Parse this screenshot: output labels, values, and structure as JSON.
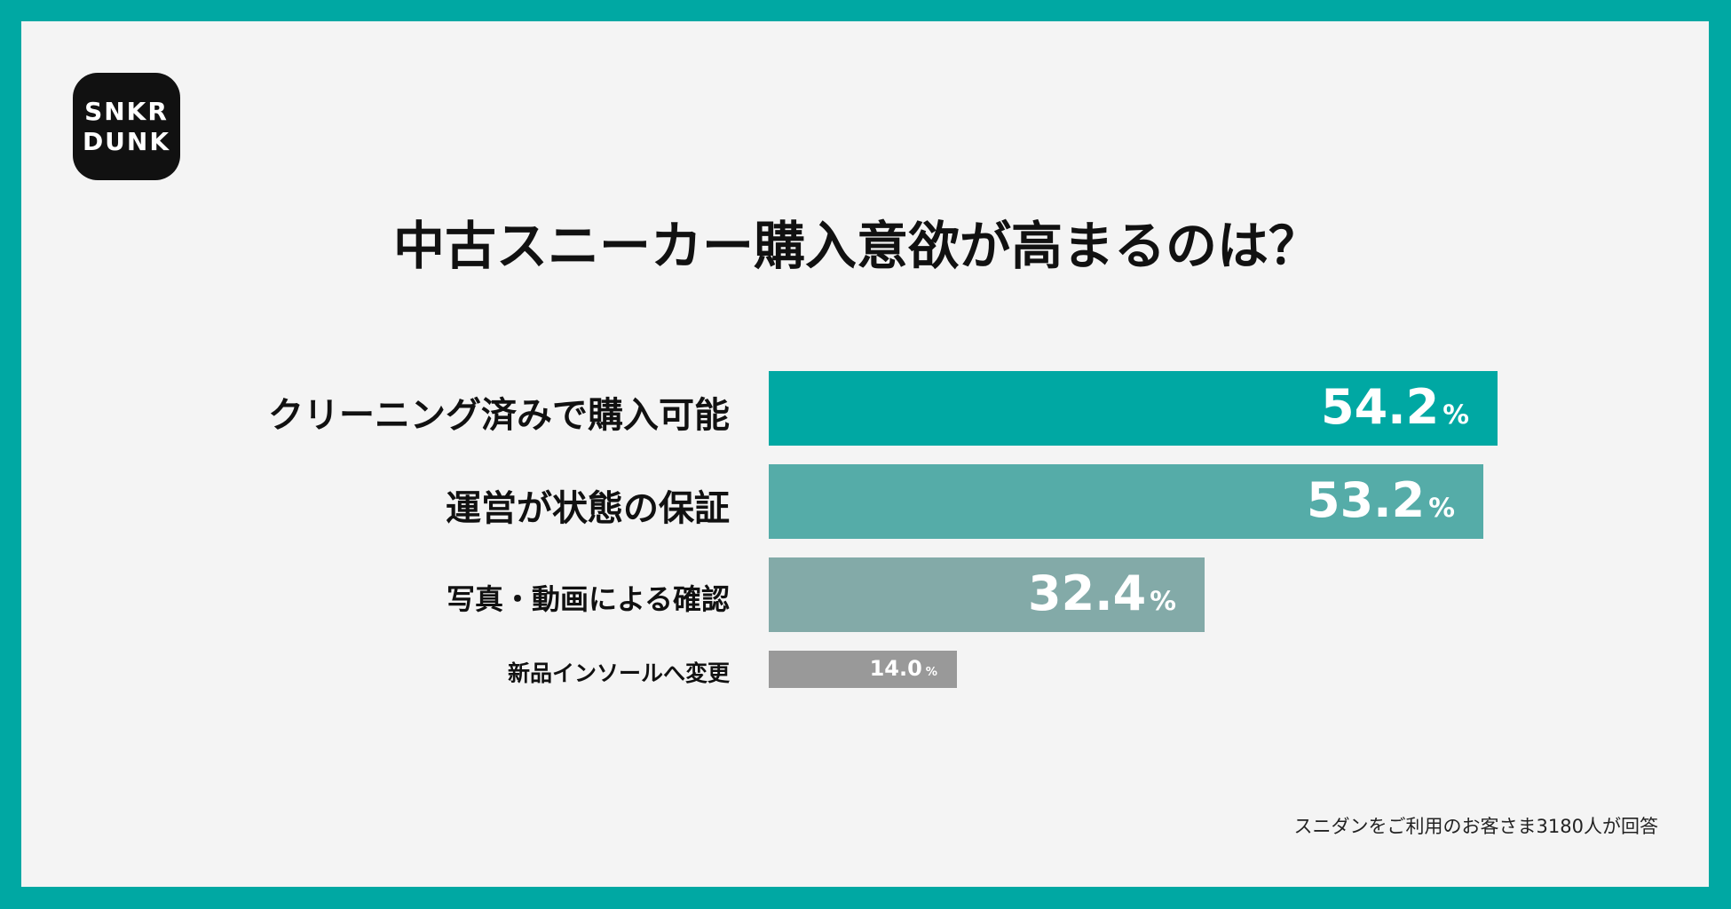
{
  "logo": {
    "line1": "SNKR",
    "line2": "DUNK"
  },
  "title": "中古スニーカー購入意欲が高まるのは？",
  "chart_data": {
    "type": "bar",
    "orientation": "horizontal",
    "title": "中古スニーカー購入意欲が高まるのは？",
    "categories": [
      "クリーニング済みで購入可能",
      "運営が状態の保証",
      "写真・動画による確認",
      "新品インソールへ変更"
    ],
    "values": [
      54.2,
      53.2,
      32.4,
      14.0
    ],
    "value_labels": [
      "54.2",
      "53.2",
      "32.4",
      "14.0"
    ],
    "unit": "%",
    "colors": [
      "#00a8a3",
      "#55aca8",
      "#83aaa8",
      "#999999"
    ],
    "xlim": [
      0,
      100
    ]
  },
  "footnote": "スニダンをご利用のお客さま3180人が回答"
}
